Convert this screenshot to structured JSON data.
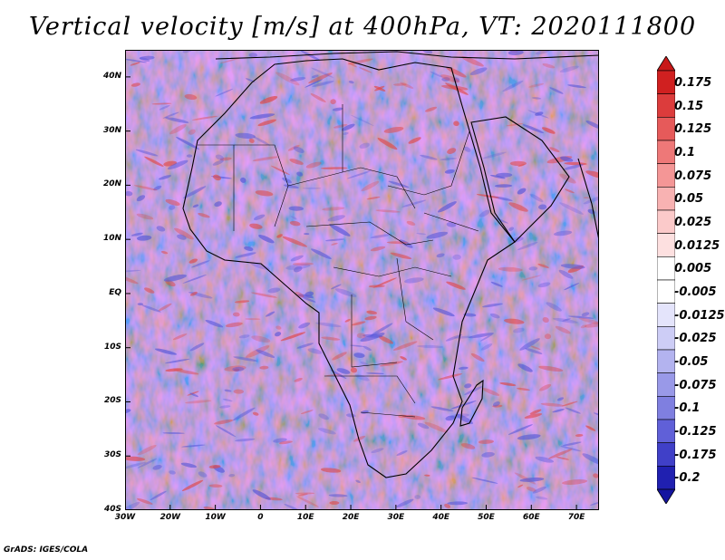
{
  "title": "Vertical velocity [m/s] at 400hPa, VT: 2020111800",
  "credit": "GrADS: IGES/COLA",
  "map": {
    "lat_labels": [
      "40N",
      "30N",
      "20N",
      "10N",
      "EQ",
      "10S",
      "20S",
      "30S",
      "40S"
    ],
    "lon_labels": [
      "30W",
      "20W",
      "10W",
      "0",
      "10E",
      "20E",
      "30E",
      "40E",
      "50E",
      "60E",
      "70E"
    ],
    "lat_range": [
      -40,
      45
    ],
    "lon_range": [
      -30,
      75
    ]
  },
  "colorbar": {
    "labels": [
      "0.175",
      "0.15",
      "0.125",
      "0.1",
      "0.075",
      "0.05",
      "0.025",
      "0.0125",
      "0.005",
      "-0.005",
      "-0.0125",
      "-0.025",
      "-0.05",
      "-0.075",
      "-0.1",
      "-0.125",
      "-0.175",
      "-0.2"
    ],
    "colors": [
      "#d02020",
      "#dc3c3c",
      "#e65a5a",
      "#ee7878",
      "#f49696",
      "#f8b2b2",
      "#fbcaca",
      "#fde0e0",
      "#ffffff",
      "#ffffff",
      "#e4e4fb",
      "#cdcdf6",
      "#b3b3ef",
      "#9999e8",
      "#7f7fe0",
      "#6060d8",
      "#4040c8",
      "#2020b0"
    ]
  },
  "colors": {
    "coast": "#000000",
    "warm": "#e04848",
    "cool": "#5858d8",
    "field": "#b8b8ee"
  }
}
